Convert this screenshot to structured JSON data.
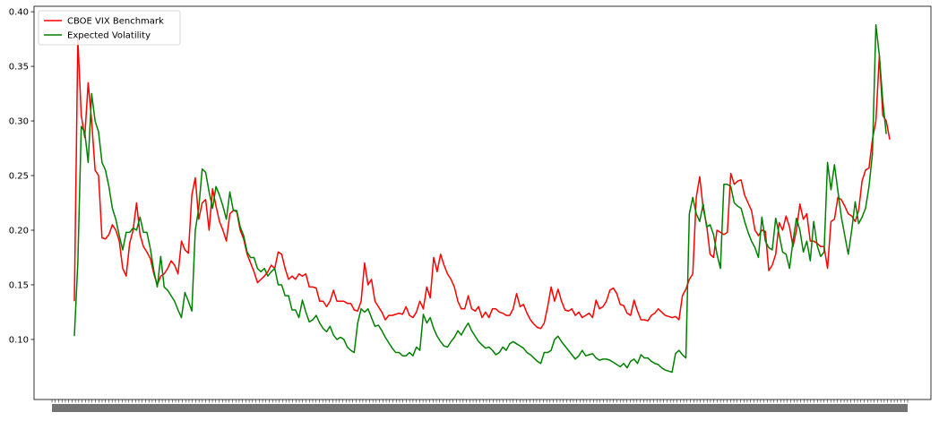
{
  "chart_data": {
    "type": "line",
    "title": "",
    "xlabel": "",
    "ylabel": "",
    "ylim": [
      0.045,
      0.405
    ],
    "yticks": [
      0.1,
      0.15,
      0.2,
      0.25,
      0.3,
      0.35,
      0.4
    ],
    "ytick_labels": [
      "0.10",
      "0.15",
      "0.20",
      "0.25",
      "0.30",
      "0.35",
      "0.40"
    ],
    "grid": false,
    "legend_position": "top-left",
    "series": [
      {
        "name": "CBOE VIX Benchmark",
        "color": "#ff0000",
        "values": [
          0.135,
          0.375,
          0.305,
          0.285,
          0.335,
          0.3,
          0.255,
          0.25,
          0.193,
          0.192,
          0.196,
          0.205,
          0.2,
          0.19,
          0.165,
          0.158,
          0.188,
          0.2,
          0.225,
          0.196,
          0.185,
          0.18,
          0.174,
          0.16,
          0.15,
          0.158,
          0.16,
          0.165,
          0.172,
          0.168,
          0.16,
          0.19,
          0.182,
          0.179,
          0.232,
          0.248,
          0.21,
          0.225,
          0.228,
          0.2,
          0.238,
          0.222,
          0.208,
          0.2,
          0.19,
          0.215,
          0.218,
          0.217,
          0.2,
          0.192,
          0.178,
          0.17,
          0.162,
          0.152,
          0.155,
          0.158,
          0.162,
          0.168,
          0.165,
          0.18,
          0.178,
          0.165,
          0.155,
          0.158,
          0.155,
          0.16,
          0.158,
          0.16,
          0.148,
          0.148,
          0.147,
          0.135,
          0.135,
          0.13,
          0.135,
          0.145,
          0.135,
          0.135,
          0.135,
          0.133,
          0.133,
          0.127,
          0.126,
          0.135,
          0.17,
          0.15,
          0.155,
          0.135,
          0.13,
          0.125,
          0.118,
          0.122,
          0.122,
          0.123,
          0.124,
          0.123,
          0.13,
          0.122,
          0.12,
          0.125,
          0.135,
          0.128,
          0.148,
          0.138,
          0.175,
          0.162,
          0.178,
          0.168,
          0.16,
          0.155,
          0.148,
          0.135,
          0.128,
          0.128,
          0.14,
          0.128,
          0.126,
          0.13,
          0.12,
          0.125,
          0.12,
          0.128,
          0.128,
          0.125,
          0.124,
          0.122,
          0.122,
          0.128,
          0.142,
          0.13,
          0.132,
          0.124,
          0.118,
          0.114,
          0.111,
          0.11,
          0.115,
          0.13,
          0.148,
          0.135,
          0.146,
          0.135,
          0.127,
          0.126,
          0.128,
          0.122,
          0.125,
          0.12,
          0.122,
          0.124,
          0.12,
          0.136,
          0.128,
          0.13,
          0.135,
          0.145,
          0.147,
          0.142,
          0.132,
          0.131,
          0.124,
          0.122,
          0.136,
          0.126,
          0.118,
          0.118,
          0.117,
          0.122,
          0.124,
          0.128,
          0.125,
          0.122,
          0.121,
          0.12,
          0.121,
          0.118,
          0.14,
          0.146,
          0.155,
          0.16,
          0.23,
          0.249,
          0.22,
          0.205,
          0.178,
          0.175,
          0.2,
          0.198,
          0.196,
          0.198,
          0.252,
          0.242,
          0.245,
          0.246,
          0.232,
          0.225,
          0.218,
          0.2,
          0.195,
          0.2,
          0.199,
          0.163,
          0.168,
          0.178,
          0.207,
          0.2,
          0.213,
          0.203,
          0.185,
          0.2,
          0.224,
          0.21,
          0.215,
          0.19,
          0.19,
          0.188,
          0.185,
          0.185,
          0.165,
          0.208,
          0.21,
          0.23,
          0.228,
          0.222,
          0.215,
          0.213,
          0.208,
          0.218,
          0.245,
          0.255,
          0.257,
          0.283,
          0.3,
          0.36,
          0.305,
          0.3,
          0.283
        ]
      },
      {
        "name": "Expected Volatility",
        "color": "#008000",
        "values": [
          0.103,
          0.17,
          0.295,
          0.29,
          0.262,
          0.325,
          0.3,
          0.29,
          0.262,
          0.255,
          0.24,
          0.22,
          0.21,
          0.195,
          0.182,
          0.198,
          0.198,
          0.202,
          0.2,
          0.212,
          0.198,
          0.198,
          0.183,
          0.163,
          0.148,
          0.176,
          0.148,
          0.145,
          0.14,
          0.135,
          0.127,
          0.12,
          0.143,
          0.135,
          0.126,
          0.2,
          0.22,
          0.256,
          0.253,
          0.235,
          0.22,
          0.24,
          0.232,
          0.222,
          0.21,
          0.235,
          0.218,
          0.218,
          0.203,
          0.195,
          0.18,
          0.175,
          0.175,
          0.165,
          0.162,
          0.165,
          0.158,
          0.162,
          0.165,
          0.15,
          0.15,
          0.14,
          0.14,
          0.127,
          0.127,
          0.12,
          0.136,
          0.125,
          0.116,
          0.118,
          0.122,
          0.115,
          0.11,
          0.107,
          0.112,
          0.104,
          0.1,
          0.102,
          0.1,
          0.093,
          0.09,
          0.088,
          0.115,
          0.128,
          0.125,
          0.128,
          0.12,
          0.112,
          0.113,
          0.108,
          0.102,
          0.097,
          0.092,
          0.088,
          0.088,
          0.085,
          0.085,
          0.088,
          0.085,
          0.093,
          0.09,
          0.123,
          0.115,
          0.12,
          0.11,
          0.103,
          0.098,
          0.094,
          0.093,
          0.098,
          0.102,
          0.108,
          0.104,
          0.11,
          0.115,
          0.108,
          0.103,
          0.098,
          0.095,
          0.092,
          0.093,
          0.09,
          0.086,
          0.088,
          0.093,
          0.09,
          0.096,
          0.098,
          0.096,
          0.094,
          0.092,
          0.088,
          0.086,
          0.083,
          0.08,
          0.078,
          0.088,
          0.088,
          0.09,
          0.1,
          0.103,
          0.098,
          0.094,
          0.09,
          0.086,
          0.082,
          0.085,
          0.09,
          0.085,
          0.086,
          0.087,
          0.083,
          0.081,
          0.082,
          0.082,
          0.081,
          0.079,
          0.077,
          0.075,
          0.078,
          0.074,
          0.08,
          0.082,
          0.078,
          0.086,
          0.083,
          0.083,
          0.08,
          0.078,
          0.077,
          0.074,
          0.072,
          0.071,
          0.07,
          0.087,
          0.09,
          0.086,
          0.083,
          0.215,
          0.23,
          0.215,
          0.208,
          0.224,
          0.203,
          0.205,
          0.196,
          0.178,
          0.165,
          0.242,
          0.242,
          0.24,
          0.225,
          0.222,
          0.22,
          0.208,
          0.198,
          0.19,
          0.184,
          0.175,
          0.212,
          0.19,
          0.184,
          0.182,
          0.211,
          0.196,
          0.18,
          0.178,
          0.165,
          0.19,
          0.211,
          0.2,
          0.18,
          0.19,
          0.172,
          0.208,
          0.186,
          0.176,
          0.18,
          0.262,
          0.237,
          0.26,
          0.236,
          0.212,
          0.195,
          0.178,
          0.2,
          0.226,
          0.206,
          0.212,
          0.22,
          0.24,
          0.27,
          0.388,
          0.36,
          0.318,
          0.288
        ]
      }
    ]
  }
}
